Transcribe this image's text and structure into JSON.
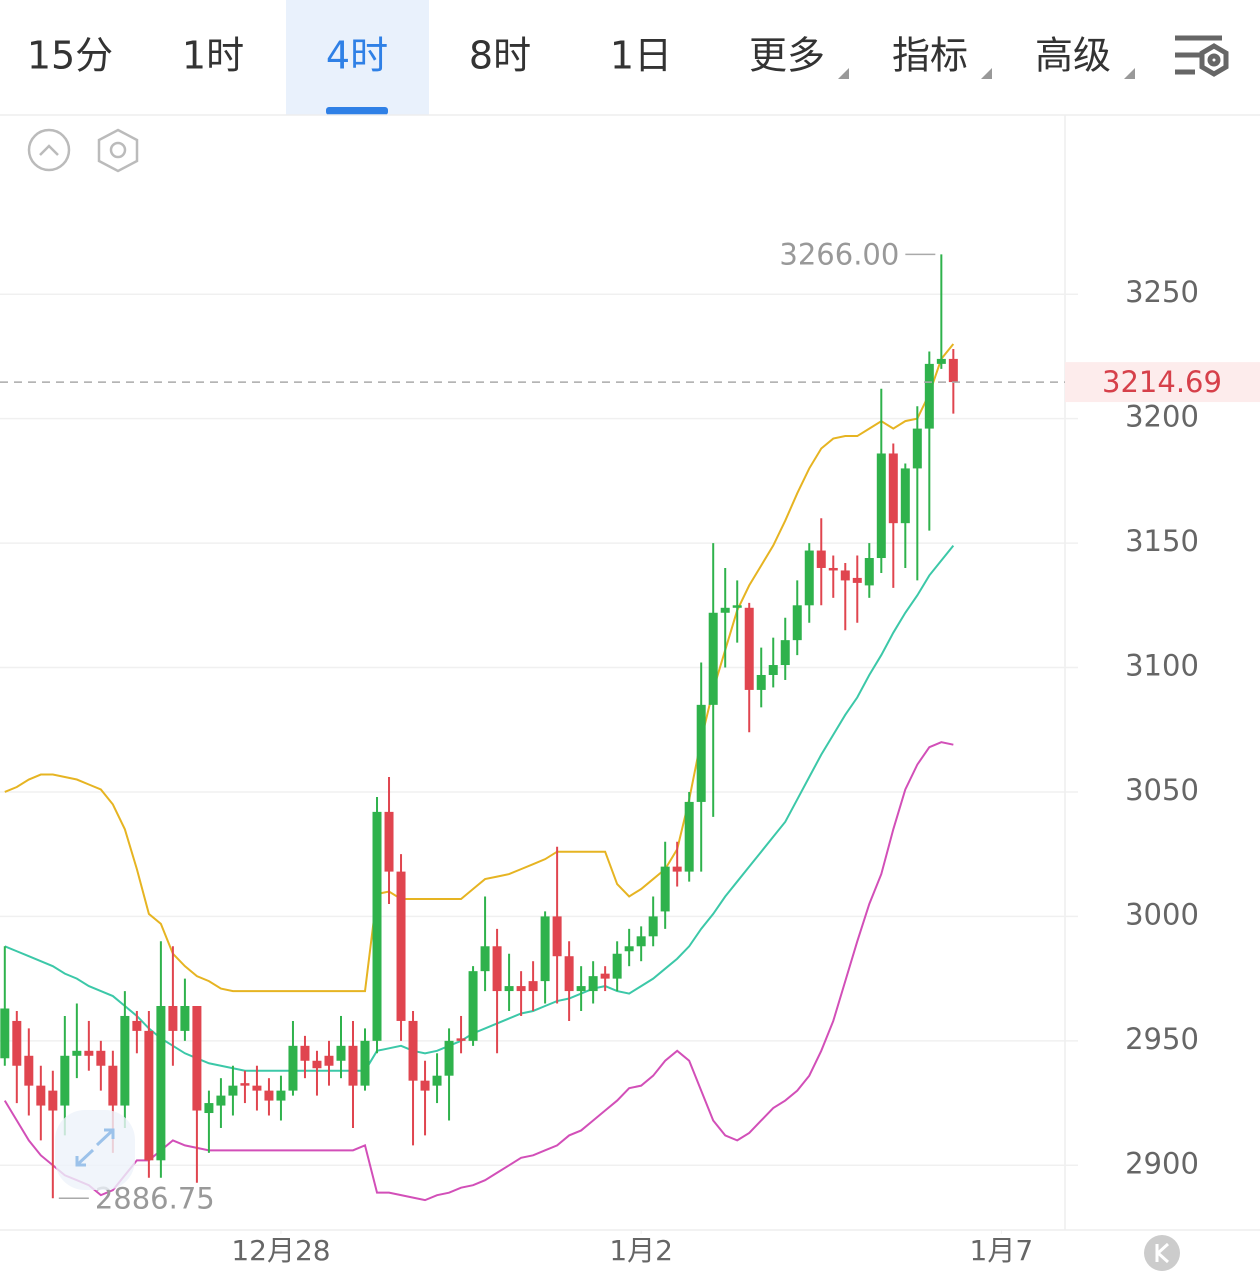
{
  "tabs": [
    {
      "label": "15分",
      "selected": false
    },
    {
      "label": "1时",
      "selected": false
    },
    {
      "label": "4时",
      "selected": true
    },
    {
      "label": "8时",
      "selected": false
    },
    {
      "label": "1日",
      "selected": false
    },
    {
      "label": "更多",
      "selected": false
    },
    {
      "label": "指标",
      "selected": false
    },
    {
      "label": "高级",
      "selected": false
    }
  ],
  "chart_data": {
    "type": "candlestick",
    "open": [
      2943,
      2958,
      2944,
      2932,
      2930,
      2924,
      2944,
      2946,
      2946,
      2940,
      2924,
      2958,
      2954,
      2902,
      2964,
      2954,
      2964,
      2921,
      2924,
      2928,
      2933,
      2932,
      2930,
      2926,
      2930,
      2948,
      2942,
      2944,
      2942,
      2948,
      2932,
      2950,
      3042,
      3018,
      2958,
      2934,
      2932,
      2936,
      2951,
      2950,
      2978,
      2988,
      2970,
      2972,
      2974,
      2974,
      3000,
      2984,
      2970,
      2970,
      2977,
      2975,
      2986,
      2988,
      2992,
      3002,
      3020,
      3018,
      3046,
      3085,
      3122,
      3124,
      3124,
      3091,
      3097,
      3101,
      3111,
      3125,
      3147,
      3140,
      3139,
      3136,
      3133,
      3144,
      3186,
      3158,
      3180,
      3196,
      3222,
      3224
    ],
    "high": [
      2988,
      2962,
      2955,
      2940,
      2938,
      2960,
      2965,
      2958,
      2950,
      2946,
      2970,
      2962,
      2962,
      2990,
      2988,
      2975,
      2964,
      2930,
      2935,
      2940,
      2938,
      2940,
      2935,
      2936,
      2958,
      2952,
      2946,
      2950,
      2960,
      2958,
      2955,
      3048,
      3056,
      3025,
      2962,
      2942,
      2945,
      2955,
      2960,
      2980,
      3008,
      2995,
      2985,
      2978,
      2982,
      3002,
      3028,
      2990,
      2980,
      2982,
      2980,
      2990,
      2995,
      2996,
      3008,
      3030,
      3030,
      3050,
      3102,
      3150,
      3140,
      3135,
      3126,
      3108,
      3112,
      3120,
      3135,
      3150,
      3160,
      3145,
      3142,
      3145,
      3150,
      3212,
      3190,
      3182,
      3205,
      3227,
      3266,
      3228
    ],
    "low": [
      2940,
      2925,
      2920,
      2910,
      2886.75,
      2912,
      2935,
      2938,
      2930,
      2905,
      2915,
      2945,
      2895,
      2895,
      2940,
      2950,
      2893,
      2905,
      2915,
      2920,
      2925,
      2922,
      2920,
      2918,
      2928,
      2935,
      2928,
      2932,
      2935,
      2915,
      2930,
      2945,
      3005,
      2950,
      2908,
      2912,
      2925,
      2918,
      2945,
      2948,
      2970,
      2945,
      2962,
      2960,
      2962,
      2965,
      2965,
      2958,
      2962,
      2965,
      2970,
      2970,
      2980,
      2982,
      2988,
      2995,
      3012,
      3014,
      3018,
      3040,
      3100,
      3110,
      3074,
      3084,
      3092,
      3095,
      3105,
      3118,
      3125,
      3128,
      3115,
      3118,
      3128,
      3138,
      3132,
      3140,
      3135,
      3155,
      3220,
      3202
    ],
    "close": [
      2963,
      2940,
      2932,
      2924,
      2922,
      2944,
      2946,
      2944,
      2940,
      2924,
      2960,
      2954,
      2902,
      2964,
      2954,
      2964,
      2922,
      2925,
      2928,
      2932,
      2932,
      2930,
      2926,
      2930,
      2948,
      2942,
      2939,
      2940,
      2948,
      2932,
      2950,
      3042,
      3018,
      2958,
      2934,
      2930,
      2936,
      2950,
      2950,
      2978,
      2988,
      2970,
      2972,
      2970,
      2970,
      3000,
      2984,
      2970,
      2972,
      2976,
      2975,
      2985,
      2988,
      2992,
      3000,
      3020,
      3018,
      3046,
      3085,
      3122,
      3124,
      3125,
      3091,
      3097,
      3101,
      3111,
      3125,
      3147,
      3140,
      3139,
      3135,
      3134,
      3144,
      3186,
      3158,
      3180,
      3196,
      3222,
      3224,
      3214.69
    ],
    "up_color": "#2fb24c",
    "down_color": "#e0454f",
    "bands": [
      {
        "color": "#e6b422",
        "values": [
          3050,
          3052,
          3055,
          3057,
          3057,
          3056,
          3055,
          3053,
          3051,
          3045,
          3035,
          3019,
          3001,
          2997,
          2985,
          2980,
          2976,
          2974,
          2971,
          2970,
          2970,
          2970,
          2970,
          2970,
          2970,
          2970,
          2970,
          2970,
          2970,
          2970,
          2970,
          3009,
          3010,
          3007,
          3007,
          3007,
          3007,
          3007,
          3007,
          3011,
          3015,
          3016,
          3017,
          3019,
          3021,
          3023,
          3026,
          3026,
          3026,
          3026,
          3026,
          3013,
          3008,
          3011,
          3015,
          3019,
          3027,
          3047,
          3071,
          3091,
          3107,
          3123,
          3133,
          3141,
          3149,
          3159,
          3170,
          3180,
          3188,
          3192,
          3193,
          3193,
          3196,
          3199,
          3196,
          3199,
          3200,
          3210,
          3224,
          3230
        ]
      },
      {
        "color": "#3cc8a8",
        "values": [
          2988,
          2986,
          2984,
          2982,
          2980,
          2977,
          2975,
          2972,
          2970,
          2968,
          2964,
          2960,
          2955,
          2951,
          2948,
          2945,
          2943,
          2941,
          2940,
          2939,
          2938,
          2938,
          2938,
          2938,
          2938,
          2938,
          2938,
          2938,
          2938,
          2938,
          2938,
          2946,
          2947,
          2948,
          2946,
          2945,
          2946,
          2948,
          2950,
          2953,
          2955,
          2957,
          2959,
          2961,
          2962,
          2964,
          2966,
          2967,
          2969,
          2971,
          2972,
          2970,
          2969,
          2972,
          2975,
          2979,
          2983,
          2988,
          2995,
          3001,
          3008,
          3014,
          3020,
          3026,
          3032,
          3038,
          3047,
          3056,
          3065,
          3073,
          3081,
          3088,
          3097,
          3105,
          3114,
          3122,
          3129,
          3137,
          3143,
          3149
        ]
      },
      {
        "color": "#d24fb8",
        "values": [
          2926,
          2918,
          2910,
          2904,
          2900,
          2896,
          2894,
          2892,
          2888,
          2890,
          2896,
          2902,
          2902,
          2906,
          2910,
          2908,
          2907,
          2906,
          2906,
          2906,
          2906,
          2906,
          2906,
          2906,
          2906,
          2906,
          2906,
          2906,
          2906,
          2906,
          2908,
          2889,
          2889,
          2888,
          2887,
          2886,
          2888,
          2889,
          2891,
          2892,
          2894,
          2897,
          2900,
          2903,
          2904,
          2906,
          2908,
          2912,
          2914,
          2918,
          2922,
          2926,
          2931,
          2932,
          2936,
          2942,
          2946,
          2942,
          2930,
          2918,
          2912,
          2910,
          2913,
          2918,
          2923,
          2926,
          2930,
          2936,
          2946,
          2958,
          2974,
          2990,
          3005,
          3017,
          3035,
          3051,
          3061,
          3068,
          3070,
          3069
        ]
      }
    ],
    "ylim": [
      2874,
      3322
    ],
    "yticks": [
      2900,
      2950,
      3000,
      3050,
      3100,
      3150,
      3200,
      3250
    ],
    "xlim": [
      -0.4,
      88.3
    ],
    "xticks": [
      {
        "value": 23,
        "label": "12月28"
      },
      {
        "value": 53,
        "label": "1月2"
      },
      {
        "value": 83,
        "label": "1月7"
      }
    ],
    "grid": true,
    "last_price": 3214.69,
    "high_label": {
      "value": 3266,
      "label": "3266.00"
    },
    "low_label": {
      "value": 2886.75,
      "label": "2886.75"
    }
  }
}
